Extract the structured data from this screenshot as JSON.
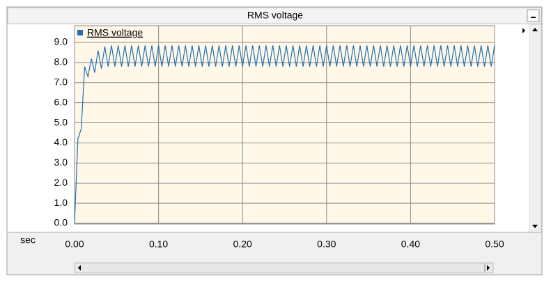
{
  "chart_data": {
    "type": "line",
    "title": "RMS voltage",
    "x_label": "sec",
    "x": [
      0,
      0.004,
      0.008,
      0.012,
      0.016,
      0.02,
      0.024,
      0.028,
      0.032,
      0.036,
      0.04,
      0.044,
      0.048,
      0.052,
      0.056,
      0.06,
      0.064,
      0.068,
      0.072,
      0.076,
      0.08,
      0.084,
      0.088,
      0.092,
      0.096,
      0.1,
      0.104,
      0.108,
      0.112,
      0.116,
      0.12,
      0.124,
      0.128,
      0.132,
      0.136,
      0.14,
      0.144,
      0.148,
      0.152,
      0.156,
      0.16,
      0.164,
      0.168,
      0.172,
      0.176,
      0.18,
      0.184,
      0.188,
      0.192,
      0.196,
      0.2,
      0.204,
      0.208,
      0.212,
      0.216,
      0.22,
      0.224,
      0.228,
      0.232,
      0.236,
      0.24,
      0.244,
      0.248,
      0.252,
      0.256,
      0.26,
      0.264,
      0.268,
      0.272,
      0.276,
      0.28,
      0.284,
      0.288,
      0.292,
      0.296,
      0.3,
      0.304,
      0.308,
      0.312,
      0.316,
      0.32,
      0.324,
      0.328,
      0.332,
      0.336,
      0.34,
      0.344,
      0.348,
      0.352,
      0.356,
      0.36,
      0.364,
      0.368,
      0.372,
      0.376,
      0.38,
      0.384,
      0.388,
      0.392,
      0.396,
      0.4,
      0.404,
      0.408,
      0.412,
      0.416,
      0.42,
      0.424,
      0.428,
      0.432,
      0.436,
      0.44,
      0.444,
      0.448,
      0.452,
      0.456,
      0.46,
      0.464,
      0.468,
      0.472,
      0.476,
      0.48,
      0.484,
      0.488,
      0.492,
      0.496,
      0.5
    ],
    "series": [
      {
        "name": "RMS voltage",
        "color": "#1f6fb5",
        "values": [
          0,
          4.2,
          4.7,
          7.8,
          7.3,
          8.2,
          7.5,
          8.6,
          7.7,
          8.8,
          7.8,
          8.85,
          7.8,
          8.85,
          7.8,
          8.85,
          7.8,
          8.85,
          7.8,
          8.85,
          7.8,
          8.85,
          7.8,
          8.85,
          7.8,
          8.85,
          7.8,
          8.85,
          7.8,
          8.85,
          7.8,
          8.85,
          7.8,
          8.85,
          7.8,
          8.85,
          7.8,
          8.85,
          7.8,
          8.85,
          7.8,
          8.85,
          7.8,
          8.85,
          7.8,
          8.85,
          7.8,
          8.85,
          7.8,
          8.85,
          7.8,
          8.85,
          7.8,
          8.85,
          7.8,
          8.85,
          7.8,
          8.85,
          7.8,
          8.85,
          7.8,
          8.85,
          7.8,
          8.85,
          7.8,
          8.85,
          7.8,
          8.85,
          7.8,
          8.85,
          7.8,
          8.85,
          7.8,
          8.85,
          7.8,
          8.85,
          7.8,
          8.85,
          7.8,
          8.85,
          7.8,
          8.85,
          7.8,
          8.85,
          7.8,
          8.85,
          7.8,
          8.85,
          7.8,
          8.85,
          7.8,
          8.85,
          7.8,
          8.85,
          7.8,
          8.85,
          7.8,
          8.85,
          7.8,
          8.85,
          7.8,
          8.85,
          7.8,
          8.85,
          7.8,
          8.85,
          7.8,
          8.85,
          7.8,
          8.85,
          7.8,
          8.85,
          7.8,
          8.85,
          7.8,
          8.85,
          7.8,
          8.85,
          7.8,
          8.85,
          7.8,
          8.85,
          7.8,
          8.85,
          7.8,
          8.85
        ]
      }
    ],
    "xlim": [
      0,
      0.5
    ],
    "xticks": [
      {
        "value": 0,
        "label": "0.00"
      },
      {
        "value": 0.1,
        "label": "0.10"
      },
      {
        "value": 0.2,
        "label": "0.20"
      },
      {
        "value": 0.3,
        "label": "0.30"
      },
      {
        "value": 0.4,
        "label": "0.40"
      },
      {
        "value": 0.5,
        "label": "0.50"
      }
    ],
    "ylim": [
      0,
      9
    ],
    "yticks": [
      {
        "value": 0,
        "label": "0.0"
      },
      {
        "value": 1,
        "label": "1.0"
      },
      {
        "value": 2,
        "label": "2.0"
      },
      {
        "value": 3,
        "label": "3.0"
      },
      {
        "value": 4,
        "label": "4.0"
      },
      {
        "value": 5,
        "label": "5.0"
      },
      {
        "value": 6,
        "label": "6.0"
      },
      {
        "value": 7,
        "label": "7.0"
      },
      {
        "value": 8,
        "label": "8.0"
      },
      {
        "value": 9,
        "label": "9.0"
      }
    ],
    "grid": true
  }
}
